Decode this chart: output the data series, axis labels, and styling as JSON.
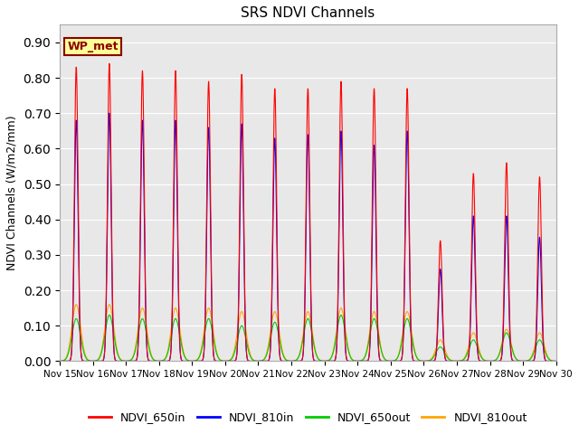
{
  "title": "SRS NDVI Channels",
  "ylabel": "NDVI Channels (W/m2/mm)",
  "ylim": [
    0.0,
    0.95
  ],
  "yticks": [
    0.0,
    0.1,
    0.2,
    0.3,
    0.4,
    0.5,
    0.6,
    0.7,
    0.8,
    0.9
  ],
  "annotation": "WP_met",
  "annotation_color": "#8B0000",
  "annotation_bg": "#FFFF99",
  "bg_color": "#E8E8E8",
  "line_colors": {
    "NDVI_650in": "#FF0000",
    "NDVI_810in": "#0000FF",
    "NDVI_650out": "#00CC00",
    "NDVI_810out": "#FFA500"
  },
  "day_peaks_650in": [
    0.83,
    0.84,
    0.82,
    0.82,
    0.79,
    0.81,
    0.77,
    0.77,
    0.79,
    0.77,
    0.77,
    0.34,
    0.53,
    0.56,
    0.52
  ],
  "day_peaks_810in": [
    0.68,
    0.7,
    0.68,
    0.68,
    0.66,
    0.67,
    0.63,
    0.64,
    0.65,
    0.61,
    0.65,
    0.26,
    0.41,
    0.41,
    0.35
  ],
  "day_peaks_650out": [
    0.12,
    0.13,
    0.12,
    0.12,
    0.12,
    0.1,
    0.11,
    0.12,
    0.13,
    0.12,
    0.12,
    0.04,
    0.06,
    0.08,
    0.06
  ],
  "day_peaks_810out": [
    0.16,
    0.16,
    0.15,
    0.15,
    0.15,
    0.14,
    0.14,
    0.14,
    0.15,
    0.14,
    0.14,
    0.06,
    0.08,
    0.09,
    0.08
  ],
  "start_day": 15,
  "end_day": 30,
  "points_per_day": 200,
  "sigma_in": 0.055,
  "sigma_out": 0.13,
  "figsize": [
    6.4,
    4.8
  ],
  "dpi": 100
}
